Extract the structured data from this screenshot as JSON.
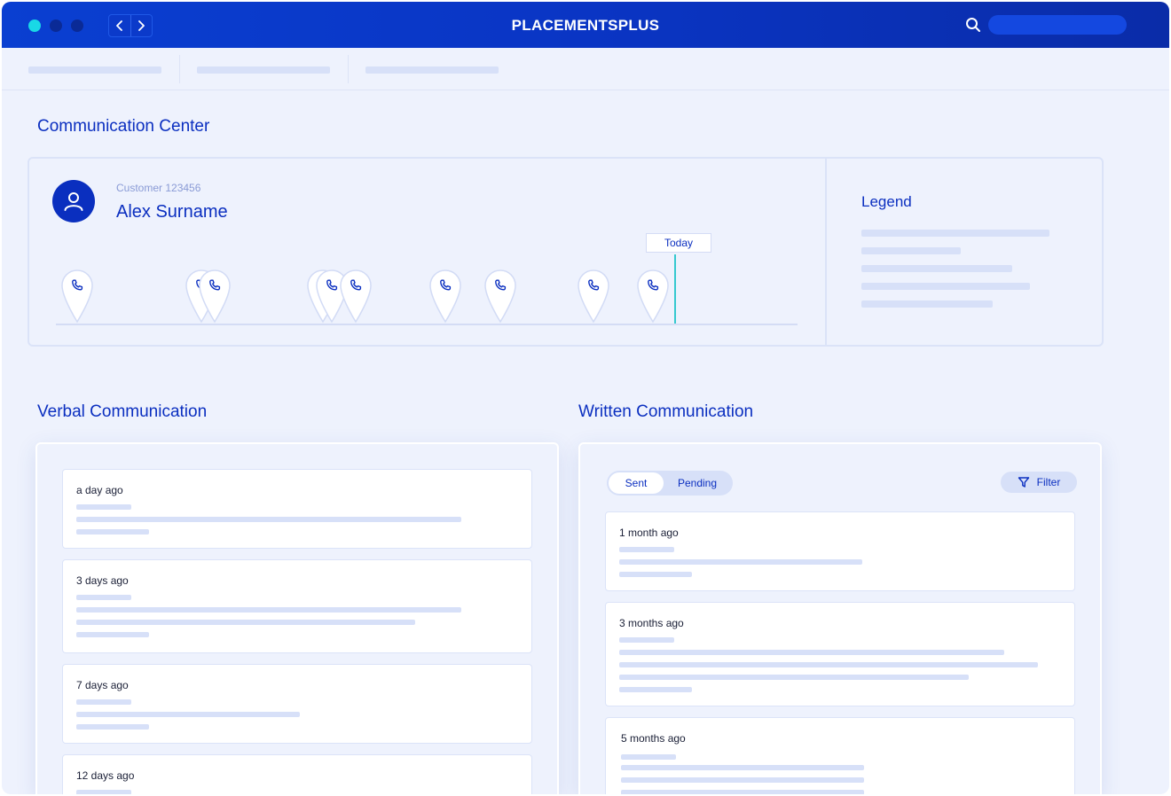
{
  "app": {
    "title": "PLACEMENTSPLUS",
    "window_dots": [
      "#19d8e6",
      "#0a2a96",
      "#0a2a96"
    ]
  },
  "communication_center": {
    "title": "Communication Center",
    "customer_id": "Customer 123456",
    "customer_name": "Alex Surname",
    "today_label": "Today",
    "timeline_icon": "phone-icon",
    "legend_title": "Legend"
  },
  "verbal": {
    "title": "Verbal Communication",
    "items": [
      {
        "time": "a day ago"
      },
      {
        "time": "3 days ago"
      },
      {
        "time": "7 days ago"
      },
      {
        "time": "12 days ago"
      }
    ]
  },
  "written": {
    "title": "Written Communication",
    "tabs": [
      "Sent",
      "Pending"
    ],
    "active_tab": "Sent",
    "filter_label": "Filter",
    "items": [
      {
        "time": "1 month ago"
      },
      {
        "time": "3 months ago"
      },
      {
        "time": "5 months ago"
      }
    ]
  },
  "colors": {
    "brand": "#0a3fd1",
    "accent_text": "#0b2fc0",
    "today_line": "#35c9cf"
  }
}
